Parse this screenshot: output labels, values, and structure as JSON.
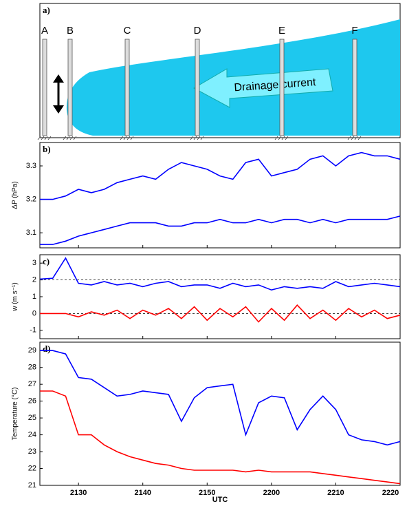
{
  "chart_data": [
    {
      "type": "diagram",
      "panel_label": "a)",
      "masts": [
        "A",
        "B",
        "C",
        "D",
        "E",
        "F"
      ],
      "annotation": "Drainage current"
    },
    {
      "type": "line",
      "panel_label": "b)",
      "ylabel": "ΔP (hPa)",
      "x": [
        24,
        26,
        28,
        30,
        32,
        34,
        36,
        38,
        40,
        42,
        44,
        46,
        48,
        50,
        52,
        54,
        56,
        58,
        60,
        62,
        64,
        66,
        68,
        70,
        72,
        74,
        76,
        78,
        80
      ],
      "xlim": [
        24,
        80
      ],
      "xticks": [
        {
          "value": 30,
          "label": "2130"
        },
        {
          "value": 40,
          "label": "2140"
        },
        {
          "value": 50,
          "label": "2150"
        },
        {
          "value": 60,
          "label": "2200"
        },
        {
          "value": 70,
          "label": "2210"
        },
        {
          "value": 80,
          "label": "2220"
        }
      ],
      "ylim": [
        3.055,
        3.37
      ],
      "yticks": [
        3.1,
        3.2,
        3.3
      ],
      "series": [
        {
          "color": "#0000ff",
          "values": [
            3.2,
            3.2,
            3.21,
            3.23,
            3.22,
            3.23,
            3.25,
            3.26,
            3.27,
            3.26,
            3.29,
            3.31,
            3.3,
            3.29,
            3.27,
            3.26,
            3.31,
            3.32,
            3.27,
            3.28,
            3.29,
            3.32,
            3.33,
            3.3,
            3.33,
            3.34,
            3.33,
            3.33,
            3.32
          ]
        },
        {
          "color": "#0000ff",
          "values": [
            3.065,
            3.065,
            3.075,
            3.09,
            3.1,
            3.11,
            3.12,
            3.13,
            3.13,
            3.13,
            3.12,
            3.12,
            3.13,
            3.13,
            3.14,
            3.13,
            3.13,
            3.14,
            3.13,
            3.14,
            3.14,
            3.13,
            3.14,
            3.13,
            3.14,
            3.14,
            3.14,
            3.14,
            3.15
          ]
        }
      ]
    },
    {
      "type": "line",
      "panel_label": "c)",
      "ylabel": "w (m s⁻¹)",
      "x": [
        24,
        26,
        28,
        30,
        32,
        34,
        36,
        38,
        40,
        42,
        44,
        46,
        48,
        50,
        52,
        54,
        56,
        58,
        60,
        62,
        64,
        66,
        68,
        70,
        72,
        74,
        76,
        78,
        80
      ],
      "xlim": [
        24,
        80
      ],
      "xticks": [
        {
          "value": 30,
          "label": "2130"
        },
        {
          "value": 40,
          "label": "2140"
        },
        {
          "value": 50,
          "label": "2150"
        },
        {
          "value": 60,
          "label": "2200"
        },
        {
          "value": 70,
          "label": "2210"
        },
        {
          "value": 80,
          "label": "2220"
        }
      ],
      "ylim": [
        -1.5,
        3.5
      ],
      "yticks": [
        -1,
        0,
        1,
        2,
        3
      ],
      "reference_lines": [
        2,
        0
      ],
      "series": [
        {
          "color": "#0000ff",
          "values": [
            2.05,
            2.1,
            3.3,
            1.8,
            1.7,
            1.9,
            1.7,
            1.8,
            1.6,
            1.8,
            1.9,
            1.6,
            1.7,
            1.7,
            1.5,
            1.8,
            1.6,
            1.7,
            1.4,
            1.6,
            1.5,
            1.6,
            1.5,
            1.9,
            1.6,
            1.7,
            1.8,
            1.7,
            1.6
          ]
        },
        {
          "color": "#ff0000",
          "values": [
            0,
            0,
            0,
            -0.2,
            0.1,
            -0.1,
            0.2,
            -0.3,
            0.2,
            -0.1,
            0.3,
            -0.3,
            0.4,
            -0.4,
            0.3,
            -0.2,
            0.4,
            -0.5,
            0.3,
            -0.4,
            0.5,
            -0.3,
            0.2,
            -0.4,
            0.3,
            -0.2,
            0.2,
            -0.3,
            -0.1
          ]
        }
      ]
    },
    {
      "type": "line",
      "panel_label": "d)",
      "ylabel": "Temperature (°C)",
      "xlabel": "UTC",
      "x": [
        24,
        26,
        28,
        30,
        32,
        34,
        36,
        38,
        40,
        42,
        44,
        46,
        48,
        50,
        52,
        54,
        56,
        58,
        60,
        62,
        64,
        66,
        68,
        70,
        72,
        74,
        76,
        78,
        80
      ],
      "xlim": [
        24,
        80
      ],
      "xticks": [
        {
          "value": 30,
          "label": "2130"
        },
        {
          "value": 40,
          "label": "2140"
        },
        {
          "value": 50,
          "label": "2150"
        },
        {
          "value": 60,
          "label": "2200"
        },
        {
          "value": 70,
          "label": "2210"
        },
        {
          "value": 80,
          "label": "2220"
        }
      ],
      "ylim": [
        21,
        29.5
      ],
      "yticks": [
        21,
        22,
        23,
        24,
        25,
        26,
        27,
        28,
        29
      ],
      "series": [
        {
          "color": "#0000ff",
          "values": [
            29,
            29,
            28.8,
            27.4,
            27.3,
            26.8,
            26.3,
            26.4,
            26.6,
            26.5,
            26.4,
            24.8,
            26.2,
            26.8,
            26.9,
            27,
            24,
            25.9,
            26.3,
            26.2,
            24.3,
            25.5,
            26.3,
            25.5,
            24,
            23.7,
            23.6,
            23.4,
            23.6
          ]
        },
        {
          "color": "#ff0000",
          "values": [
            26.6,
            26.6,
            26.3,
            24,
            24,
            23.4,
            23,
            22.7,
            22.5,
            22.3,
            22.2,
            22,
            21.9,
            21.9,
            21.9,
            21.9,
            21.8,
            21.9,
            21.8,
            21.8,
            21.8,
            21.8,
            21.7,
            21.6,
            21.5,
            21.4,
            21.3,
            21.2,
            21.1
          ]
        }
      ]
    }
  ]
}
